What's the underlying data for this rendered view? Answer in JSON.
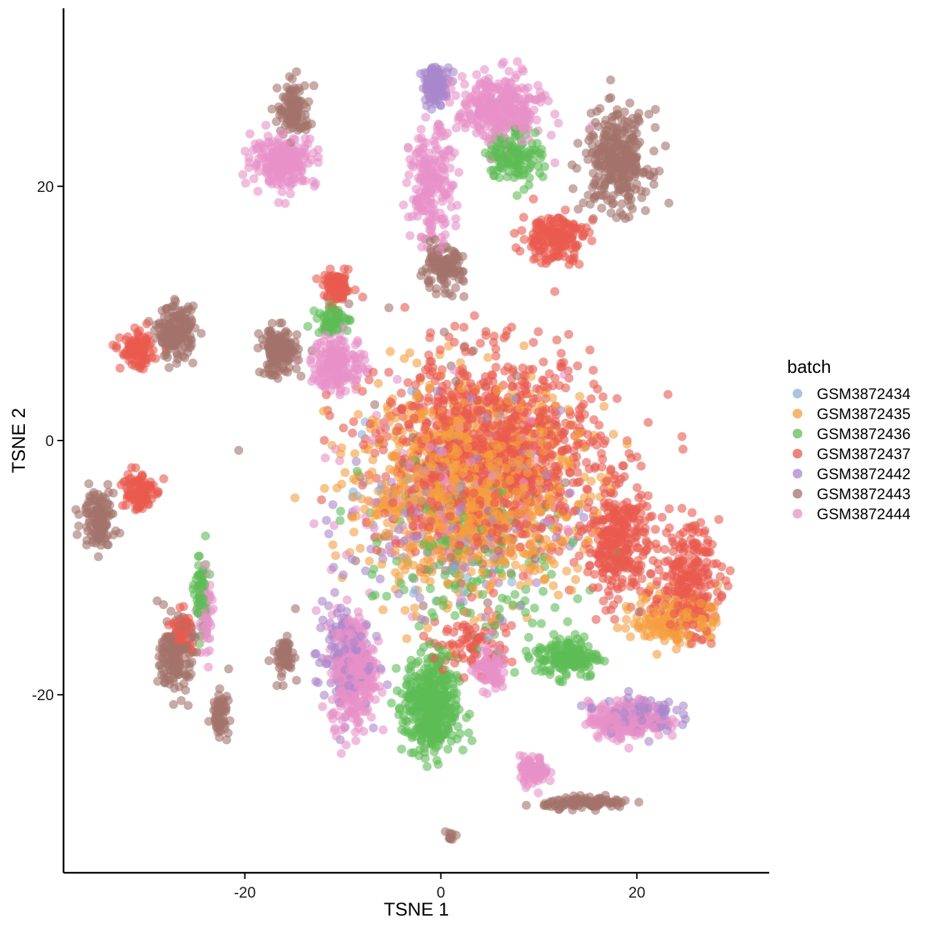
{
  "chart_data": {
    "type": "scatter",
    "title": "",
    "xlabel": "TSNE 1",
    "ylabel": "TSNE 2",
    "xlim": [
      -38.5,
      33.5
    ],
    "ylim": [
      -34,
      34
    ],
    "x_ticks": [
      -20,
      0,
      20
    ],
    "y_ticks": [
      -20,
      0,
      20
    ],
    "grid": false,
    "legend": {
      "title": "batch",
      "placement": "right",
      "entries": [
        {
          "name": "GSM3872434",
          "color": "#8DB0D9"
        },
        {
          "name": "GSM3872435",
          "color": "#F59E3F"
        },
        {
          "name": "GSM3872436",
          "color": "#5DBD55"
        },
        {
          "name": "GSM3872437",
          "color": "#EA5A4E"
        },
        {
          "name": "GSM3872442",
          "color": "#A987CC"
        },
        {
          "name": "GSM3872443",
          "color": "#A3736A"
        },
        {
          "name": "GSM3872444",
          "color": "#E891C8"
        }
      ]
    },
    "clusters": [
      {
        "batch": "GSM3872435",
        "cx": 3,
        "cy": -4,
        "sx": 10,
        "sy": 7,
        "n": 1100
      },
      {
        "batch": "GSM3872437",
        "cx": 5,
        "cy": -1,
        "sx": 10,
        "sy": 7,
        "n": 1100
      },
      {
        "batch": "GSM3872437",
        "cx": 18,
        "cy": -8,
        "sx": 3,
        "sy": 4,
        "n": 300
      },
      {
        "batch": "GSM3872437",
        "cx": 25,
        "cy": -11,
        "sx": 3,
        "sy": 4,
        "n": 250
      },
      {
        "batch": "GSM3872435",
        "cx": 24,
        "cy": -14,
        "sx": 4,
        "sy": 2,
        "n": 160
      },
      {
        "batch": "GSM3872436",
        "cx": -1,
        "cy": -21,
        "sx": 2.5,
        "sy": 3.5,
        "n": 420
      },
      {
        "batch": "GSM3872436",
        "cx": 13,
        "cy": -17,
        "sx": 3,
        "sy": 1.5,
        "n": 160
      },
      {
        "batch": "GSM3872444",
        "cx": -9,
        "cy": -18,
        "sx": 2,
        "sy": 4,
        "n": 360
      },
      {
        "batch": "GSM3872442",
        "cx": -10,
        "cy": -17,
        "sx": 2.5,
        "sy": 4,
        "n": 120
      },
      {
        "batch": "GSM3872444",
        "cx": 5,
        "cy": -18,
        "sx": 1.5,
        "sy": 1.5,
        "n": 90
      },
      {
        "batch": "GSM3872444",
        "cx": 19,
        "cy": -22,
        "sx": 3.5,
        "sy": 1.3,
        "n": 220
      },
      {
        "batch": "GSM3872442",
        "cx": 20,
        "cy": -21.5,
        "sx": 3.5,
        "sy": 1.3,
        "n": 100
      },
      {
        "batch": "GSM3872444",
        "cx": 9.5,
        "cy": -26,
        "sx": 1.3,
        "sy": 1,
        "n": 80
      },
      {
        "batch": "GSM3872443",
        "cx": 15,
        "cy": -28.5,
        "sx": 4,
        "sy": 0.4,
        "n": 110
      },
      {
        "batch": "GSM3872443",
        "cx": 18,
        "cy": 22,
        "sx": 3,
        "sy": 3.5,
        "n": 320
      },
      {
        "batch": "GSM3872444",
        "cx": 6,
        "cy": 26,
        "sx": 4,
        "sy": 2.5,
        "n": 320
      },
      {
        "batch": "GSM3872444",
        "cx": -1,
        "cy": 20,
        "sx": 2,
        "sy": 4,
        "n": 200
      },
      {
        "batch": "GSM3872442",
        "cx": -0.5,
        "cy": 28,
        "sx": 1.3,
        "sy": 1.3,
        "n": 110
      },
      {
        "batch": "GSM3872436",
        "cx": 7.5,
        "cy": 22.5,
        "sx": 2.5,
        "sy": 2,
        "n": 140
      },
      {
        "batch": "GSM3872437",
        "cx": 11.5,
        "cy": 16,
        "sx": 3,
        "sy": 1.8,
        "n": 170
      },
      {
        "batch": "GSM3872443",
        "cx": 0,
        "cy": 13.5,
        "sx": 2,
        "sy": 1.5,
        "n": 120
      },
      {
        "batch": "GSM3872444",
        "cx": -16,
        "cy": 22,
        "sx": 3,
        "sy": 1.8,
        "n": 220
      },
      {
        "batch": "GSM3872443",
        "cx": -15,
        "cy": 26,
        "sx": 1.5,
        "sy": 2,
        "n": 110
      },
      {
        "batch": "GSM3872443",
        "cx": -27,
        "cy": 8.5,
        "sx": 1.7,
        "sy": 1.8,
        "n": 180
      },
      {
        "batch": "GSM3872437",
        "cx": -31,
        "cy": 7,
        "sx": 1.5,
        "sy": 1.2,
        "n": 110
      },
      {
        "batch": "GSM3872443",
        "cx": -16.5,
        "cy": 7,
        "sx": 1.7,
        "sy": 1.7,
        "n": 150
      },
      {
        "batch": "GSM3872444",
        "cx": -10.5,
        "cy": 6,
        "sx": 2.5,
        "sy": 2,
        "n": 180
      },
      {
        "batch": "GSM3872437",
        "cx": -10.5,
        "cy": 12,
        "sx": 1.3,
        "sy": 1.1,
        "n": 90
      },
      {
        "batch": "GSM3872436",
        "cx": -11,
        "cy": 9.5,
        "sx": 1.5,
        "sy": 1,
        "n": 60
      },
      {
        "batch": "GSM3872443",
        "cx": -35,
        "cy": -6,
        "sx": 1.5,
        "sy": 2,
        "n": 120
      },
      {
        "batch": "GSM3872437",
        "cx": -31,
        "cy": -4,
        "sx": 1.5,
        "sy": 1.5,
        "n": 110
      },
      {
        "batch": "GSM3872443",
        "cx": -27,
        "cy": -17,
        "sx": 1.5,
        "sy": 2.5,
        "n": 160
      },
      {
        "batch": "GSM3872437",
        "cx": -26.5,
        "cy": -15,
        "sx": 1,
        "sy": 1.5,
        "n": 60
      },
      {
        "batch": "GSM3872436",
        "cx": -24.5,
        "cy": -12,
        "sx": 0.6,
        "sy": 3,
        "n": 60
      },
      {
        "batch": "GSM3872444",
        "cx": -24,
        "cy": -14,
        "sx": 0.6,
        "sy": 3,
        "n": 60
      },
      {
        "batch": "GSM3872443",
        "cx": -22.5,
        "cy": -21.5,
        "sx": 0.8,
        "sy": 1.5,
        "n": 60
      },
      {
        "batch": "GSM3872443",
        "cx": -16,
        "cy": -17,
        "sx": 1,
        "sy": 1.5,
        "n": 60
      },
      {
        "batch": "GSM3872443",
        "cx": 1,
        "cy": -31,
        "sx": 0.4,
        "sy": 0.4,
        "n": 10
      },
      {
        "batch": "GSM3872436",
        "cx": 3,
        "cy": -10,
        "sx": 10,
        "sy": 6,
        "n": 150
      },
      {
        "batch": "GSM3872442",
        "cx": 1,
        "cy": -6,
        "sx": 10,
        "sy": 7,
        "n": 120
      },
      {
        "batch": "GSM3872444",
        "cx": 2,
        "cy": -4,
        "sx": 10,
        "sy": 7,
        "n": 140
      },
      {
        "batch": "GSM3872434",
        "cx": 2,
        "cy": -6,
        "sx": 12,
        "sy": 8,
        "n": 40
      },
      {
        "batch": "GSM3872443",
        "cx": 2,
        "cy": -2,
        "sx": 14,
        "sy": 12,
        "n": 50
      },
      {
        "batch": "GSM3872437",
        "cx": 3,
        "cy": -16,
        "sx": 4,
        "sy": 2,
        "n": 80
      }
    ]
  }
}
